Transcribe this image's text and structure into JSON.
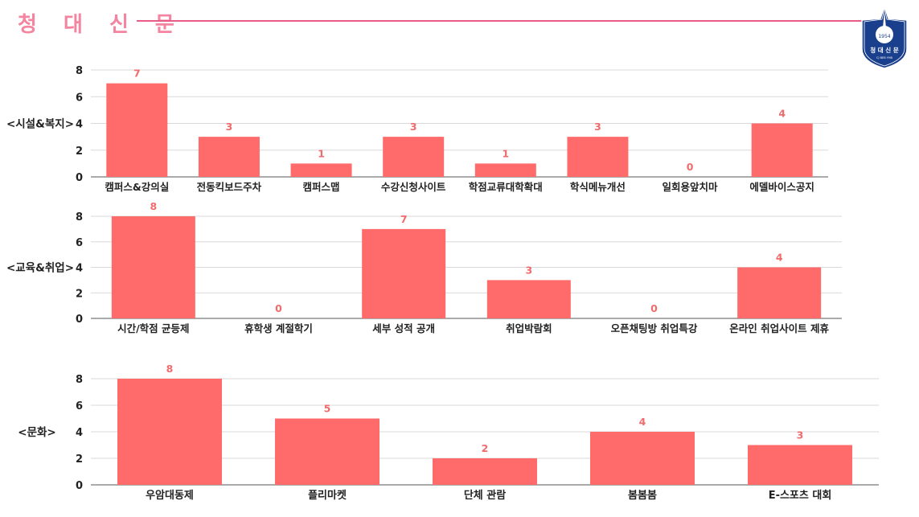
{
  "header": {
    "title": "청 대 신 문"
  },
  "emblem": {
    "year": "1954",
    "name": "청 대 신 문",
    "sub": "CJ BEB YHB"
  },
  "colors": {
    "bar": "#ff6b6b",
    "value_label": "#f06b6b",
    "title": "#f4849f",
    "rule": "#e85c86",
    "emblem": "#1a3f8c"
  },
  "chart_data": [
    {
      "type": "bar",
      "ylabel": "<시설&복지>",
      "ylim": [
        0,
        8
      ],
      "yticks": [
        0,
        2,
        4,
        6,
        8
      ],
      "grid": true,
      "categories": [
        "캠퍼스&강의실",
        "전동킥보드주차",
        "캠퍼스맵",
        "수강신청사이트",
        "학점교류대학확대",
        "학식메뉴개선",
        "일회용앞치마",
        "에델바이스공지"
      ],
      "values": [
        7,
        3,
        1,
        3,
        1,
        3,
        0,
        4
      ]
    },
    {
      "type": "bar",
      "ylabel": "<교육&취업>",
      "ylim": [
        0,
        8
      ],
      "yticks": [
        0,
        2,
        4,
        6,
        8
      ],
      "grid": true,
      "categories": [
        "시간/학점 균등제",
        "휴학생 계절학기",
        "세부 성적 공개",
        "취업박람회",
        "오픈채팅방 취업특강",
        "온라인 취업사이트 제휴"
      ],
      "values": [
        8,
        0,
        7,
        3,
        0,
        4
      ]
    },
    {
      "type": "bar",
      "ylabel": "<문화>",
      "ylim": [
        0,
        8
      ],
      "yticks": [
        0,
        2,
        4,
        6,
        8
      ],
      "grid": true,
      "categories": [
        "우암대동제",
        "플리마켓",
        "단체 관람",
        "봄봄봄",
        "E-스포츠 대회"
      ],
      "values": [
        8,
        5,
        2,
        4,
        3
      ]
    }
  ]
}
